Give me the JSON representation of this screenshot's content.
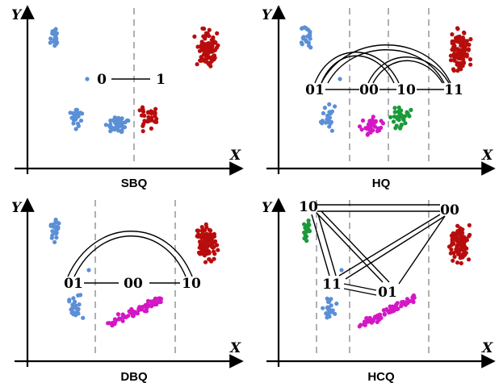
{
  "colors": {
    "blue": "#5b8fd6",
    "red": "#b80d0d",
    "magenta": "#d417c4",
    "green": "#1a9a3a",
    "axis": "#000000",
    "divider": "#b0b0b0"
  },
  "axes": {
    "x_letter": "X",
    "y_letter": "Y"
  },
  "panels": [
    {
      "id": "sbq",
      "title": "SBQ",
      "codes": {
        "c0": "0",
        "c1": "1"
      }
    },
    {
      "id": "hq",
      "title": "HQ",
      "codes": {
        "c01": "01",
        "c00": "00",
        "c10": "10",
        "c11": "11"
      }
    },
    {
      "id": "dbq",
      "title": "DBQ",
      "codes": {
        "c01": "01",
        "c00": "00",
        "c10": "10"
      }
    },
    {
      "id": "hcq",
      "title": "HCQ",
      "codes": {
        "c10": "10",
        "c00": "00",
        "c11": "11",
        "c01": "01"
      }
    }
  ]
}
